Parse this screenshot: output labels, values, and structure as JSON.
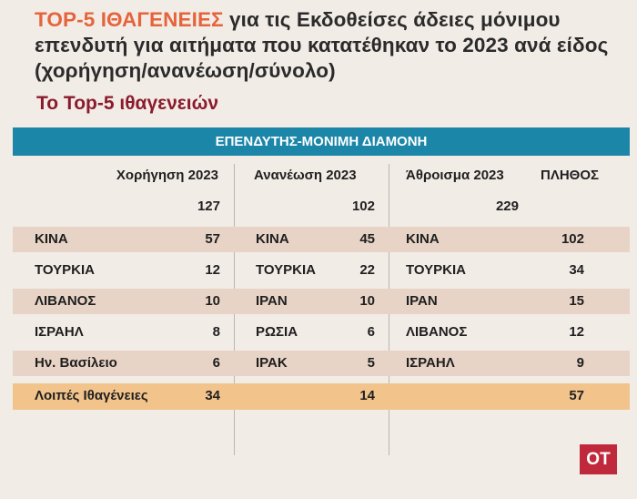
{
  "title": {
    "accent": "TOP-5 ΙΘΑΓΕΝΕΙΕΣ",
    "rest": " για τις Εκδοθείσες άδειες μόνιμου επενδυτή για αιτήματα που κατατέθηκαν το 2023 ανά είδος (χορήγηση/ανανέωση/σύνολο)"
  },
  "subtitle": "Το Top-5 ιθαγενειών",
  "banner": "ΕΠΕΝΔΥΤΗΣ-ΜΟΝΙΜΗ ΔΙΑΜΟΝΗ",
  "headers": {
    "grant": "Χορήγηση 2023",
    "renewal": "Ανανέωση 2023",
    "sum": "Άθροισμα 2023",
    "count": "ΠΛΗΘΟΣ"
  },
  "totals": {
    "grant": "127",
    "renewal": "102",
    "sum": "229"
  },
  "rows": [
    {
      "g_name": "ΚΙΝΑ",
      "g_val": "57",
      "r_name": "ΚΙΝΑ",
      "r_val": "45",
      "s_name": "ΚΙΝΑ",
      "s_val": "102"
    },
    {
      "g_name": "ΤΟΥΡΚΙΑ",
      "g_val": "12",
      "r_name": "ΤΟΥΡΚΙΑ",
      "r_val": "22",
      "s_name": "ΤΟΥΡΚΙΑ",
      "s_val": "34"
    },
    {
      "g_name": "ΛΙΒΑΝΟΣ",
      "g_val": "10",
      "r_name": "ΙΡΑΝ",
      "r_val": "10",
      "s_name": "ΙΡΑΝ",
      "s_val": "15"
    },
    {
      "g_name": "ΙΣΡΑΗΛ",
      "g_val": "8",
      "r_name": "ΡΩΣΙΑ",
      "r_val": "6",
      "s_name": "ΛΙΒΑΝΟΣ",
      "s_val": "12"
    },
    {
      "g_name": "Ην. Βασίλειο",
      "g_val": "6",
      "r_name": "ΙΡΑΚ",
      "r_val": "5",
      "s_name": "ΙΣΡΑΗΛ",
      "s_val": "9"
    }
  ],
  "others": {
    "label": "Λοιπές Ιθαγένειες",
    "grant": "34",
    "renewal": "14",
    "count": "57"
  },
  "badge": "OT",
  "colors": {
    "accent": "#e5643a",
    "subtitle": "#8b1b2c",
    "banner": "#1b86a8",
    "band": "#e8d4c6",
    "others_band": "#f2c48c",
    "badge": "#c0293b"
  }
}
